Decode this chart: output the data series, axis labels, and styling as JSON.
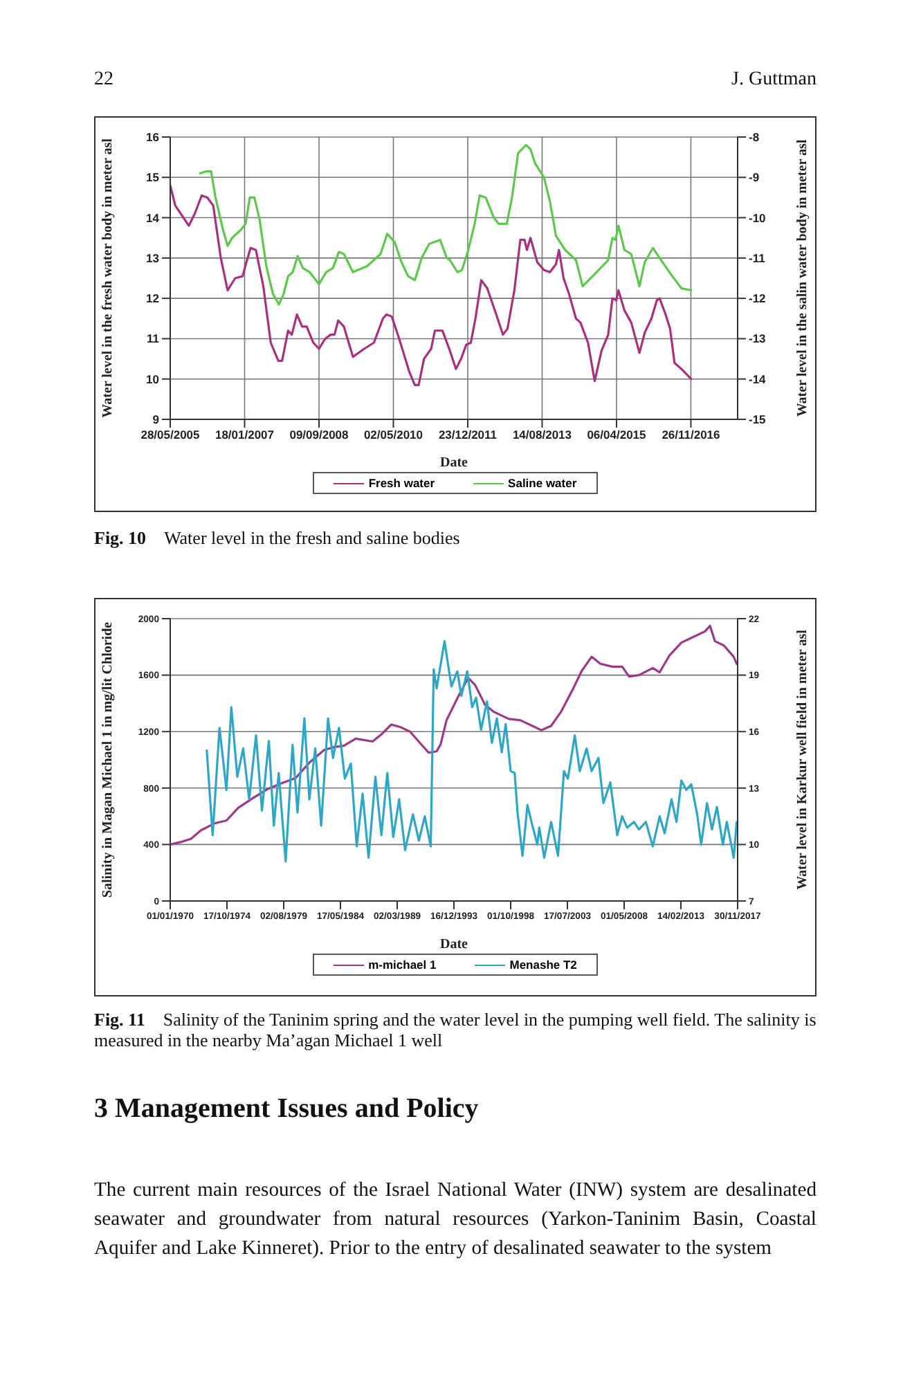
{
  "chart_data": [
    {
      "type": "line",
      "xlabel": "Date",
      "ylabel": "Water level in the fresh water body in meter asl",
      "y2label": "Water level in the salin water body in meter asl",
      "xlim": [
        "2005-05-28",
        "2017-12-08"
      ],
      "xticks": [
        {
          "value": "2005-05-28",
          "label": "28/05/2005"
        },
        {
          "value": "2007-01-18",
          "label": "18/01/2007"
        },
        {
          "value": "2008-09-09",
          "label": "09/09/2008"
        },
        {
          "value": "2010-05-02",
          "label": "02/05/2010"
        },
        {
          "value": "2011-12-23",
          "label": "23/12/2011"
        },
        {
          "value": "2013-08-14",
          "label": "14/08/2013"
        },
        {
          "value": "2015-04-06",
          "label": "06/04/2015"
        },
        {
          "value": "2016-11-26",
          "label": "26/11/2016"
        }
      ],
      "ylim": [
        9,
        16
      ],
      "yticks": [
        9,
        10,
        11,
        12,
        13,
        14,
        15,
        16
      ],
      "y2lim": [
        -15,
        -8
      ],
      "y2ticks": [
        -15,
        -14,
        -13,
        -12,
        -11,
        -10,
        -9,
        -8
      ],
      "grid": true,
      "legend": "bottom",
      "marker": "none",
      "line_style": "solid",
      "series": [
        {
          "name": "Fresh water",
          "color": "#a8307c",
          "x": [
            "2005-05-28",
            "2005-07-08",
            "2005-10-25",
            "2005-12-12",
            "2006-02-06",
            "2006-03-23",
            "2006-05-10",
            "2006-07-10",
            "2006-09-03",
            "2006-11-03",
            "2007-01-02",
            "2007-02-02",
            "2007-03-07",
            "2007-04-19",
            "2007-06-18",
            "2007-08-17",
            "2007-10-17",
            "2007-11-16",
            "2008-01-04",
            "2008-02-03",
            "2008-03-15",
            "2008-04-26",
            "2008-06-02",
            "2008-07-25",
            "2008-09-09",
            "2008-10-30",
            "2008-12-12",
            "2009-01-12",
            "2009-02-11",
            "2009-03-29",
            "2009-06-10",
            "2009-09-09",
            "2009-11-26",
            "2010-02-07",
            "2010-03-07",
            "2010-04-19",
            "2010-06-18",
            "2010-09-05",
            "2010-10-22",
            "2010-11-22",
            "2011-01-04",
            "2011-03-03",
            "2011-04-02",
            "2011-06-02",
            "2011-08-01",
            "2011-09-19",
            "2011-10-30",
            "2011-12-11",
            "2012-01-17",
            "2012-02-23",
            "2012-04-10",
            "2012-05-28",
            "2012-08-09",
            "2012-10-02",
            "2012-11-08",
            "2013-01-02",
            "2013-02-19",
            "2013-03-25",
            "2013-04-13",
            "2013-05-12",
            "2013-07-05",
            "2013-08-29",
            "2013-10-16",
            "2013-12-04",
            "2013-12-28",
            "2014-02-03",
            "2014-03-20",
            "2014-05-14",
            "2014-06-19",
            "2014-08-19",
            "2014-10-12",
            "2014-12-06",
            "2015-01-29",
            "2015-03-04",
            "2015-04-04",
            "2015-04-22",
            "2015-06-09",
            "2015-08-03",
            "2015-10-08",
            "2015-11-20",
            "2016-01-13",
            "2016-02-25",
            "2016-03-19",
            "2016-05-06",
            "2016-06-11",
            "2016-07-17",
            "2016-09-10",
            "2016-11-28"
          ],
          "values": [
            14.8,
            14.3,
            13.8,
            14.1,
            14.55,
            14.5,
            14.3,
            13.0,
            12.2,
            12.5,
            12.55,
            12.9,
            13.25,
            13.2,
            12.3,
            10.9,
            10.45,
            10.45,
            11.2,
            11.1,
            11.6,
            11.3,
            11.3,
            10.9,
            10.75,
            11.0,
            11.1,
            11.1,
            11.45,
            11.3,
            10.55,
            10.75,
            10.9,
            11.5,
            11.6,
            11.55,
            11.0,
            10.2,
            9.85,
            9.85,
            10.5,
            10.75,
            11.2,
            11.2,
            10.7,
            10.25,
            10.5,
            10.85,
            10.9,
            11.5,
            12.45,
            12.25,
            11.6,
            11.1,
            11.25,
            12.2,
            13.45,
            13.45,
            13.2,
            13.5,
            12.9,
            12.7,
            12.65,
            12.85,
            13.2,
            12.5,
            12.1,
            11.5,
            11.4,
            10.9,
            9.95,
            10.7,
            11.1,
            12.0,
            11.95,
            12.2,
            11.7,
            11.4,
            10.65,
            11.15,
            11.5,
            11.95,
            12.0,
            11.6,
            11.25,
            10.4,
            10.25,
            10.0
          ]
        },
        {
          "name": "Saline water",
          "color": "#5cc84c",
          "axis": "y2",
          "x": [
            "2006-01-24",
            "2006-03-17",
            "2006-04-23",
            "2006-05-28",
            "2006-07-28",
            "2006-09-03",
            "2006-10-09",
            "2006-12-20",
            "2007-01-26",
            "2007-03-01",
            "2007-04-07",
            "2007-05-19",
            "2007-07-12",
            "2007-09-05",
            "2007-10-22",
            "2007-11-28",
            "2008-01-04",
            "2008-02-10",
            "2008-03-21",
            "2008-05-02",
            "2008-06-26",
            "2008-09-09",
            "2008-11-06",
            "2008-12-30",
            "2009-02-17",
            "2009-03-29",
            "2009-06-10",
            "2009-10-03",
            "2010-01-19",
            "2010-03-13",
            "2010-05-12",
            "2010-07-06",
            "2010-08-29",
            "2010-10-22",
            "2010-12-16",
            "2011-02-15",
            "2011-05-14",
            "2011-07-07",
            "2011-08-01",
            "2011-10-01",
            "2011-11-06",
            "2011-12-23",
            "2012-02-17",
            "2012-03-28",
            "2012-05-16",
            "2012-07-21",
            "2012-08-27",
            "2012-11-02",
            "2012-12-14",
            "2013-02-01",
            "2013-04-06",
            "2013-05-12",
            "2013-06-18",
            "2013-08-29",
            "2013-10-16",
            "2013-12-04",
            "2014-02-15",
            "2014-05-14",
            "2014-07-07",
            "2014-10-12",
            "2015-01-29",
            "2015-03-04",
            "2015-03-28",
            "2015-04-22",
            "2015-06-09",
            "2015-08-03",
            "2015-10-08",
            "2015-11-20",
            "2016-01-25",
            "2016-03-30",
            "2016-06-29",
            "2016-09-10",
            "2016-11-28"
          ],
          "values": [
            -8.9,
            -8.85,
            -8.85,
            -9.5,
            -10.3,
            -10.7,
            -10.5,
            -10.3,
            -10.15,
            -9.5,
            -9.5,
            -10.05,
            -11.2,
            -11.9,
            -12.15,
            -11.9,
            -11.45,
            -11.35,
            -10.95,
            -11.25,
            -11.35,
            -11.65,
            -11.35,
            -11.25,
            -10.85,
            -10.9,
            -11.35,
            -11.2,
            -10.9,
            -10.4,
            -10.6,
            -11.1,
            -11.45,
            -11.55,
            -11.0,
            -10.65,
            -10.55,
            -11.0,
            -11.05,
            -11.35,
            -11.3,
            -10.85,
            -10.15,
            -9.45,
            -9.5,
            -10.0,
            -10.15,
            -10.15,
            -9.5,
            -8.4,
            -8.2,
            -8.3,
            -8.65,
            -9.0,
            -9.6,
            -10.45,
            -10.8,
            -11.05,
            -11.7,
            -11.4,
            -11.05,
            -10.5,
            -10.55,
            -10.2,
            -10.8,
            -10.9,
            -11.7,
            -11.1,
            -10.75,
            -11.05,
            -11.45,
            -11.75,
            -11.8
          ]
        }
      ],
      "annotations": [
        "22",
        "J. Guttman",
        "Fig. 10 Water level in the fresh and saline bodies"
      ]
    },
    {
      "type": "line",
      "xlabel": "Date",
      "ylabel": "Salinity in Magan Michael 1 in mg/lit Chloride",
      "y2label": "Water level in Karkur well field in meter asl",
      "xlim": [
        "1970-01-01",
        "2017-11-30"
      ],
      "xticks": [
        {
          "value": "1970-01-01",
          "label": "01/01/1970"
        },
        {
          "value": "1974-10-17",
          "label": "17/10/1974"
        },
        {
          "value": "1979-08-02",
          "label": "02/08/1979"
        },
        {
          "value": "1984-05-17",
          "label": "17/05/1984"
        },
        {
          "value": "1989-03-02",
          "label": "02/03/1989"
        },
        {
          "value": "1993-12-16",
          "label": "16/12/1993"
        },
        {
          "value": "1998-10-01",
          "label": "01/10/1998"
        },
        {
          "value": "2003-07-17",
          "label": "17/07/2003"
        },
        {
          "value": "2008-05-01",
          "label": "01/05/2008"
        },
        {
          "value": "2013-02-14",
          "label": "14/02/2013"
        },
        {
          "value": "2017-11-30",
          "label": "30/11/2017"
        }
      ],
      "ylim": [
        0,
        2000
      ],
      "yticks": [
        0,
        400,
        800,
        1200,
        1600,
        2000
      ],
      "y2lim": [
        7,
        22
      ],
      "y2ticks": [
        7,
        10,
        13,
        16,
        19,
        22
      ],
      "grid": "y",
      "legend": "bottom",
      "marker": "none",
      "line_style": "solid",
      "series": [
        {
          "name": "m-michael 1",
          "color": "#9c3a88",
          "x": [
            "1970-01",
            "1971-01",
            "1971-10",
            "1972-08",
            "1973-10",
            "1974-10",
            "1975-10",
            "1977-01",
            "1978-03",
            "1979-08",
            "1980-08",
            "1981-10",
            "1983-01",
            "1983-11",
            "1984-09",
            "1985-09",
            "1987-02",
            "1987-11",
            "1988-09",
            "1989-07",
            "1990-04",
            "1991-02",
            "1991-11",
            "1992-07",
            "1992-11",
            "1993-05",
            "1994-05",
            "1995-03",
            "1995-10",
            "1996-08",
            "1997-05",
            "1998-08",
            "1999-08",
            "2000-08",
            "2001-05",
            "2002-03",
            "2003-01",
            "2004-01",
            "2004-10",
            "2005-08",
            "2006-05",
            "2007-05",
            "2008-03",
            "2008-10",
            "2009-08",
            "2010-10",
            "2011-05",
            "2012-03",
            "2013-03",
            "2014-03",
            "2015-03",
            "2015-08",
            "2016-01",
            "2016-10",
            "2017-08",
            "2017-11"
          ],
          "values": [
            400,
            420,
            440,
            500,
            550,
            570,
            660,
            730,
            790,
            840,
            870,
            980,
            1070,
            1090,
            1100,
            1150,
            1130,
            1180,
            1250,
            1230,
            1200,
            1120,
            1050,
            1060,
            1110,
            1280,
            1450,
            1580,
            1530,
            1390,
            1340,
            1290,
            1280,
            1240,
            1210,
            1240,
            1340,
            1500,
            1630,
            1730,
            1680,
            1660,
            1660,
            1590,
            1600,
            1650,
            1620,
            1740,
            1830,
            1870,
            1910,
            1950,
            1840,
            1810,
            1730,
            1680
          ]
        },
        {
          "name": "Menashe T2",
          "color": "#2ea6c6",
          "axis": "y2",
          "x": [
            "1973-02",
            "1973-08",
            "1974-03",
            "1974-10",
            "1975-03",
            "1975-09",
            "1976-03",
            "1976-09",
            "1977-04",
            "1977-10",
            "1978-05",
            "1978-10",
            "1979-03",
            "1979-10",
            "1980-05",
            "1980-10",
            "1981-05",
            "1981-10",
            "1982-04",
            "1982-10",
            "1983-05",
            "1983-10",
            "1984-04",
            "1984-10",
            "1985-04",
            "1985-10",
            "1986-04",
            "1986-10",
            "1987-05",
            "1987-11",
            "1988-05",
            "1988-11",
            "1989-05",
            "1989-11",
            "1990-07",
            "1991-01",
            "1991-07",
            "1992-01",
            "1992-04",
            "1992-07",
            "1993-03",
            "1993-10",
            "1994-04",
            "1994-08",
            "1995-02",
            "1995-07",
            "1995-11",
            "1996-04",
            "1996-10",
            "1997-03",
            "1997-08",
            "1998-01",
            "1998-05",
            "1998-10",
            "1999-02",
            "1999-05",
            "1999-10",
            "2000-03",
            "2000-08",
            "2001-01",
            "2001-03",
            "2001-08",
            "2002-03",
            "2002-10",
            "2003-04",
            "2003-08",
            "2004-03",
            "2004-08",
            "2005-03",
            "2005-08",
            "2006-03",
            "2006-08",
            "2007-03",
            "2007-10",
            "2008-03",
            "2008-08",
            "2009-03",
            "2009-08",
            "2010-03",
            "2010-10",
            "2011-05",
            "2011-10",
            "2012-05",
            "2012-10",
            "2013-03",
            "2013-08",
            "2014-01",
            "2014-07",
            "2014-11",
            "2015-05",
            "2015-10",
            "2016-03",
            "2016-09",
            "2017-01",
            "2017-08",
            "2017-11"
          ],
          "values": [
            15.0,
            10.5,
            16.2,
            12.9,
            17.3,
            13.6,
            15.1,
            12.4,
            15.8,
            11.8,
            15.5,
            11.0,
            13.8,
            9.1,
            15.3,
            11.7,
            16.7,
            12.4,
            15.1,
            11.0,
            16.7,
            14.6,
            16.2,
            13.5,
            14.3,
            9.9,
            12.7,
            9.3,
            13.6,
            10.5,
            13.8,
            10.4,
            12.4,
            9.7,
            11.6,
            10.2,
            11.5,
            9.9,
            19.3,
            18.3,
            20.8,
            18.4,
            19.2,
            17.9,
            19.2,
            17.3,
            17.8,
            16.1,
            17.6,
            15.4,
            16.7,
            14.9,
            16.4,
            13.9,
            13.8,
            11.7,
            9.4,
            12.1,
            11.0,
            10.0,
            10.9,
            9.3,
            11.2,
            9.4,
            13.9,
            13.5,
            15.8,
            13.9,
            15.1,
            13.9,
            14.6,
            12.2,
            13.3,
            10.5,
            11.5,
            10.9,
            11.2,
            10.8,
            11.2,
            9.9,
            11.5,
            10.6,
            12.4,
            11.2,
            13.4,
            12.9,
            13.2,
            11.6,
            10.0,
            12.2,
            10.8,
            12.0,
            10.0,
            11.2,
            9.3,
            11.2
          ]
        }
      ],
      "annotations": [
        "Fig. 11 Salinity of the Taninim spring and the water level in the pumping well field. The salinity is measured in the nearby Ma’agan Michael 1 well",
        "3 Management Issues and Policy",
        "The current main resources of the Israel National Water (INW) system are desalinated seawater and groundwater from natural resources (Yarkon-Taninim Basin, Coastal Aquifer and Lake Kinneret). Prior to the entry of desalinated seawater to the system"
      ]
    }
  ]
}
